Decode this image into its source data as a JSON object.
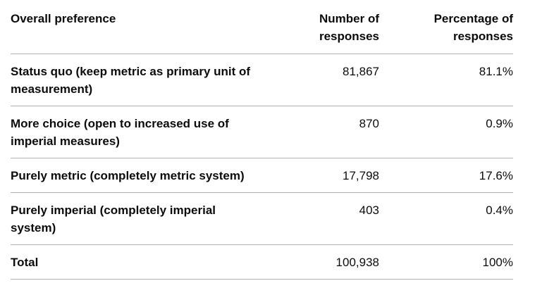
{
  "table": {
    "headers": {
      "preference": "Overall preference",
      "number": "Number of responses",
      "percentage": "Percentage of responses"
    },
    "rows": [
      {
        "label": "Status quo (keep metric as primary unit of measurement)",
        "number": "81,867",
        "percentage": "81.1%"
      },
      {
        "label": "More choice (open to increased use of imperial measures)",
        "number": "870",
        "percentage": "0.9%"
      },
      {
        "label": "Purely metric (completely metric system)",
        "number": "17,798",
        "percentage": "17.6%"
      },
      {
        "label": "Purely imperial (completely imperial system)",
        "number": "403",
        "percentage": "0.4%"
      }
    ],
    "total": {
      "label": "Total",
      "number": "100,938",
      "percentage": "100%"
    }
  }
}
